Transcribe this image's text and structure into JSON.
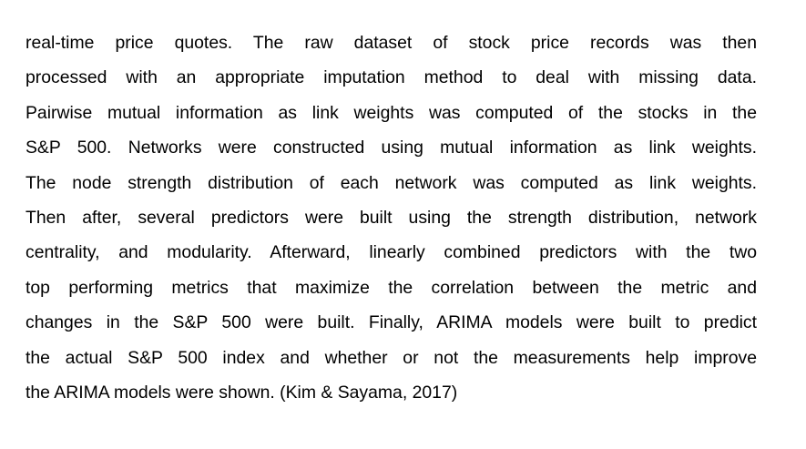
{
  "paragraph": {
    "lines": [
      "real-time price quotes. The raw dataset of stock price records was then",
      "processed with an appropriate imputation method to deal with missing data.",
      "Pairwise mutual information as link weights was computed of the stocks in the",
      "S&P 500. Networks were constructed using mutual information as link weights.",
      "The node strength distribution of each network was computed as link weights.",
      "Then after, several predictors were built using the strength distribution, network",
      "centrality, and modularity. Afterward, linearly combined predictors with the two",
      "top performing metrics that maximize the correlation between the metric and",
      "changes in the S&P 500 were built. Finally, ARIMA models were built to predict",
      "the actual S&P 500 index and whether or not the measurements help improve",
      "the ARIMA models were shown. (Kim & Sayama, 2017)"
    ]
  }
}
